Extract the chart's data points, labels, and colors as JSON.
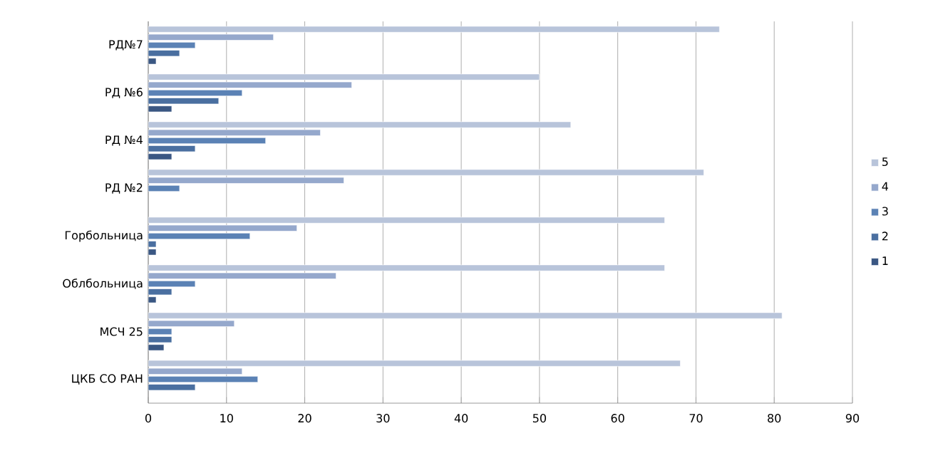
{
  "chart_data": {
    "type": "bar",
    "orientation": "horizontal",
    "categories": [
      "РД№7",
      "РД №6",
      "РД №4",
      "РД №2",
      "Горбольница",
      "Облбольница",
      "МСЧ 25",
      "ЦКБ СО РАН"
    ],
    "series": [
      {
        "name": "5",
        "color": "#b8c4da",
        "values": [
          73,
          50,
          54,
          71,
          66,
          66,
          81,
          68
        ]
      },
      {
        "name": "4",
        "color": "#95a8cc",
        "values": [
          16,
          26,
          22,
          25,
          19,
          24,
          11,
          12
        ]
      },
      {
        "name": "3",
        "color": "#5b82b5",
        "values": [
          6,
          12,
          15,
          4,
          13,
          6,
          3,
          14
        ]
      },
      {
        "name": "2",
        "color": "#4a6fa0",
        "values": [
          4,
          9,
          6,
          null,
          1,
          3,
          3,
          6
        ]
      },
      {
        "name": "1",
        "color": "#3a5783",
        "values": [
          1,
          3,
          3,
          null,
          1,
          1,
          2,
          null
        ]
      }
    ],
    "xlim": [
      0,
      90
    ],
    "xticks": [
      0,
      10,
      20,
      30,
      40,
      50,
      60,
      70,
      80,
      90
    ],
    "grid": "x",
    "legend": "right"
  }
}
